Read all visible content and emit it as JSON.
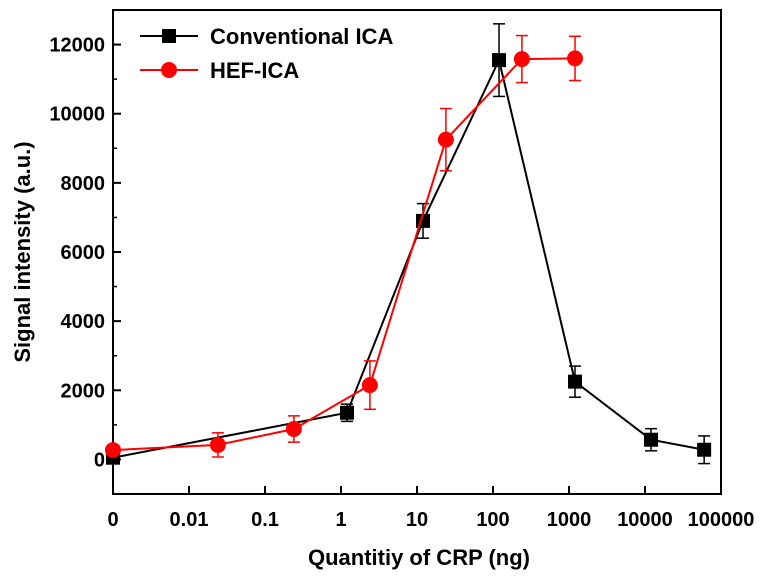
{
  "chart_data": {
    "type": "line",
    "xlabel": "Quantitiy of CRP (ng)",
    "ylabel": "Signal intensity (a.u.)",
    "x_scale": "log",
    "ylim": [
      -1000,
      13000
    ],
    "x_ticks": [
      "0",
      "0.01",
      "0.1",
      "1",
      "10",
      "100",
      "1000",
      "10000",
      "100000"
    ],
    "y_ticks": [
      0,
      2000,
      4000,
      6000,
      8000,
      10000,
      12000
    ],
    "legend_position": "top-left",
    "grid": false,
    "series": [
      {
        "name": "Conventional ICA",
        "color": "#000000",
        "marker": "square",
        "points": [
          {
            "x": 0.001,
            "y": 50,
            "err": 0
          },
          {
            "x": 1.2,
            "y": 1350,
            "err": 250
          },
          {
            "x": 12,
            "y": 6900,
            "err": 500
          },
          {
            "x": 120,
            "y": 11550,
            "err": 1050
          },
          {
            "x": 1200,
            "y": 2250,
            "err": 450
          },
          {
            "x": 12000,
            "y": 570,
            "err": 320
          },
          {
            "x": 60000,
            "y": 280,
            "err": 400
          }
        ]
      },
      {
        "name": "HEF-ICA",
        "color": "#ff0000",
        "marker": "circle",
        "points": [
          {
            "x": 0.001,
            "y": 270,
            "err": 0
          },
          {
            "x": 0.024,
            "y": 420,
            "err": 350
          },
          {
            "x": 0.24,
            "y": 880,
            "err": 380
          },
          {
            "x": 2.4,
            "y": 2150,
            "err": 700
          },
          {
            "x": 24,
            "y": 9250,
            "err": 900
          },
          {
            "x": 240,
            "y": 11580,
            "err": 680
          },
          {
            "x": 1200,
            "y": 11600,
            "err": 640
          }
        ]
      }
    ]
  }
}
